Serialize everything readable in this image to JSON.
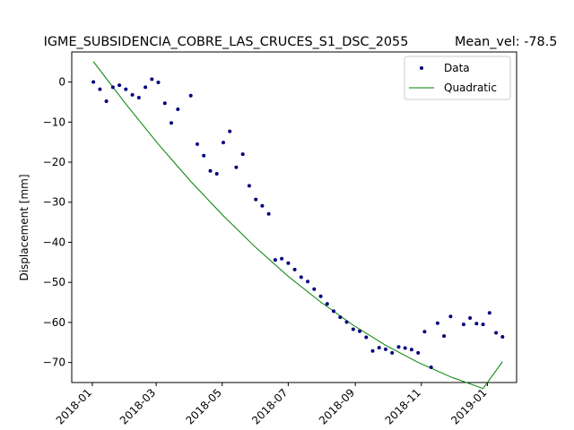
{
  "chart_data": {
    "type": "line",
    "title": "IGME_SUBSIDENCIA_COBRE_LAS_CRUCES_S1_DSC_2055",
    "mean_velocity_label": "Mean_vel: -78.5",
    "xlabel": "",
    "ylabel": "Displacement [mm]",
    "xlim": [
      "2017-12-13",
      "2019-01-28"
    ],
    "ylim": [
      -75,
      7.5
    ],
    "grid": false,
    "legend_position": "top-right",
    "x_ticks": [
      "2018-01",
      "2018-03",
      "2018-05",
      "2018-07",
      "2018-09",
      "2018-11",
      "2019-01"
    ],
    "y_ticks": [
      0,
      -10,
      -20,
      -30,
      -40,
      -50,
      -60,
      -70
    ],
    "series": [
      {
        "name": "Data",
        "style": "markers",
        "color": "#00007f",
        "x": [
          "2018-01-02",
          "2018-01-08",
          "2018-01-14",
          "2018-01-20",
          "2018-01-26",
          "2018-02-01",
          "2018-02-07",
          "2018-02-13",
          "2018-02-19",
          "2018-02-25",
          "2018-03-03",
          "2018-03-09",
          "2018-03-15",
          "2018-03-21",
          "2018-04-02",
          "2018-04-08",
          "2018-04-14",
          "2018-04-20",
          "2018-04-26",
          "2018-05-02",
          "2018-05-08",
          "2018-05-14",
          "2018-05-20",
          "2018-05-26",
          "2018-06-01",
          "2018-06-07",
          "2018-06-13",
          "2018-06-19",
          "2018-06-25",
          "2018-07-01",
          "2018-07-07",
          "2018-07-13",
          "2018-07-19",
          "2018-07-25",
          "2018-07-31",
          "2018-08-06",
          "2018-08-12",
          "2018-08-18",
          "2018-08-24",
          "2018-08-30",
          "2018-09-05",
          "2018-09-11",
          "2018-09-17",
          "2018-09-23",
          "2018-09-29",
          "2018-10-05",
          "2018-10-11",
          "2018-10-17",
          "2018-10-23",
          "2018-10-29",
          "2018-11-04",
          "2018-11-10",
          "2018-11-16",
          "2018-11-22",
          "2018-11-28",
          "2018-12-10",
          "2018-12-16",
          "2018-12-22",
          "2018-12-28",
          "2019-01-03",
          "2019-01-09",
          "2019-01-15"
        ],
        "y": [
          0,
          -1.8,
          -4.8,
          -1.3,
          -0.8,
          -1.8,
          -3.2,
          -3.9,
          -1.3,
          0.7,
          -0.1,
          -5.3,
          -10.2,
          -6.8,
          -3.4,
          -15.5,
          -18.4,
          -22.2,
          -22.9,
          -15.1,
          -12.3,
          -21.3,
          -18,
          -25.9,
          -29.3,
          -30.9,
          -32.9,
          -44.4,
          -44.1,
          -45.2,
          -46.8,
          -48.7,
          -49.8,
          -51.7,
          -53.5,
          -55.4,
          -57.2,
          -58.7,
          -59.9,
          -61.7,
          -62.2,
          -63.7,
          -67.1,
          -66.3,
          -66.7,
          -67.6,
          -66.1,
          -66.4,
          -66.8,
          -67.6,
          -62.3,
          -71.2,
          -60.2,
          -63.4,
          -58.5,
          -60.5,
          -58.9,
          -60.3,
          -60.5,
          -57.6,
          -62.6,
          -63.6
        ]
      },
      {
        "name": "Quadratic",
        "style": "line",
        "color": "#008000",
        "x": [
          "2018-01-02",
          "2018-02-01",
          "2018-03-03",
          "2018-04-02",
          "2018-05-02",
          "2018-06-01",
          "2018-07-01",
          "2018-07-31",
          "2018-08-30",
          "2018-09-29",
          "2018-10-29",
          "2018-11-28",
          "2018-12-28",
          "2019-01-15"
        ],
        "y": [
          5.1,
          -5.5,
          -15.5,
          -24.8,
          -33.4,
          -41.3,
          -48.5,
          -54.9,
          -60.7,
          -65.7,
          -70.0,
          -73.6,
          -76.5,
          -69.8
        ]
      }
    ]
  }
}
